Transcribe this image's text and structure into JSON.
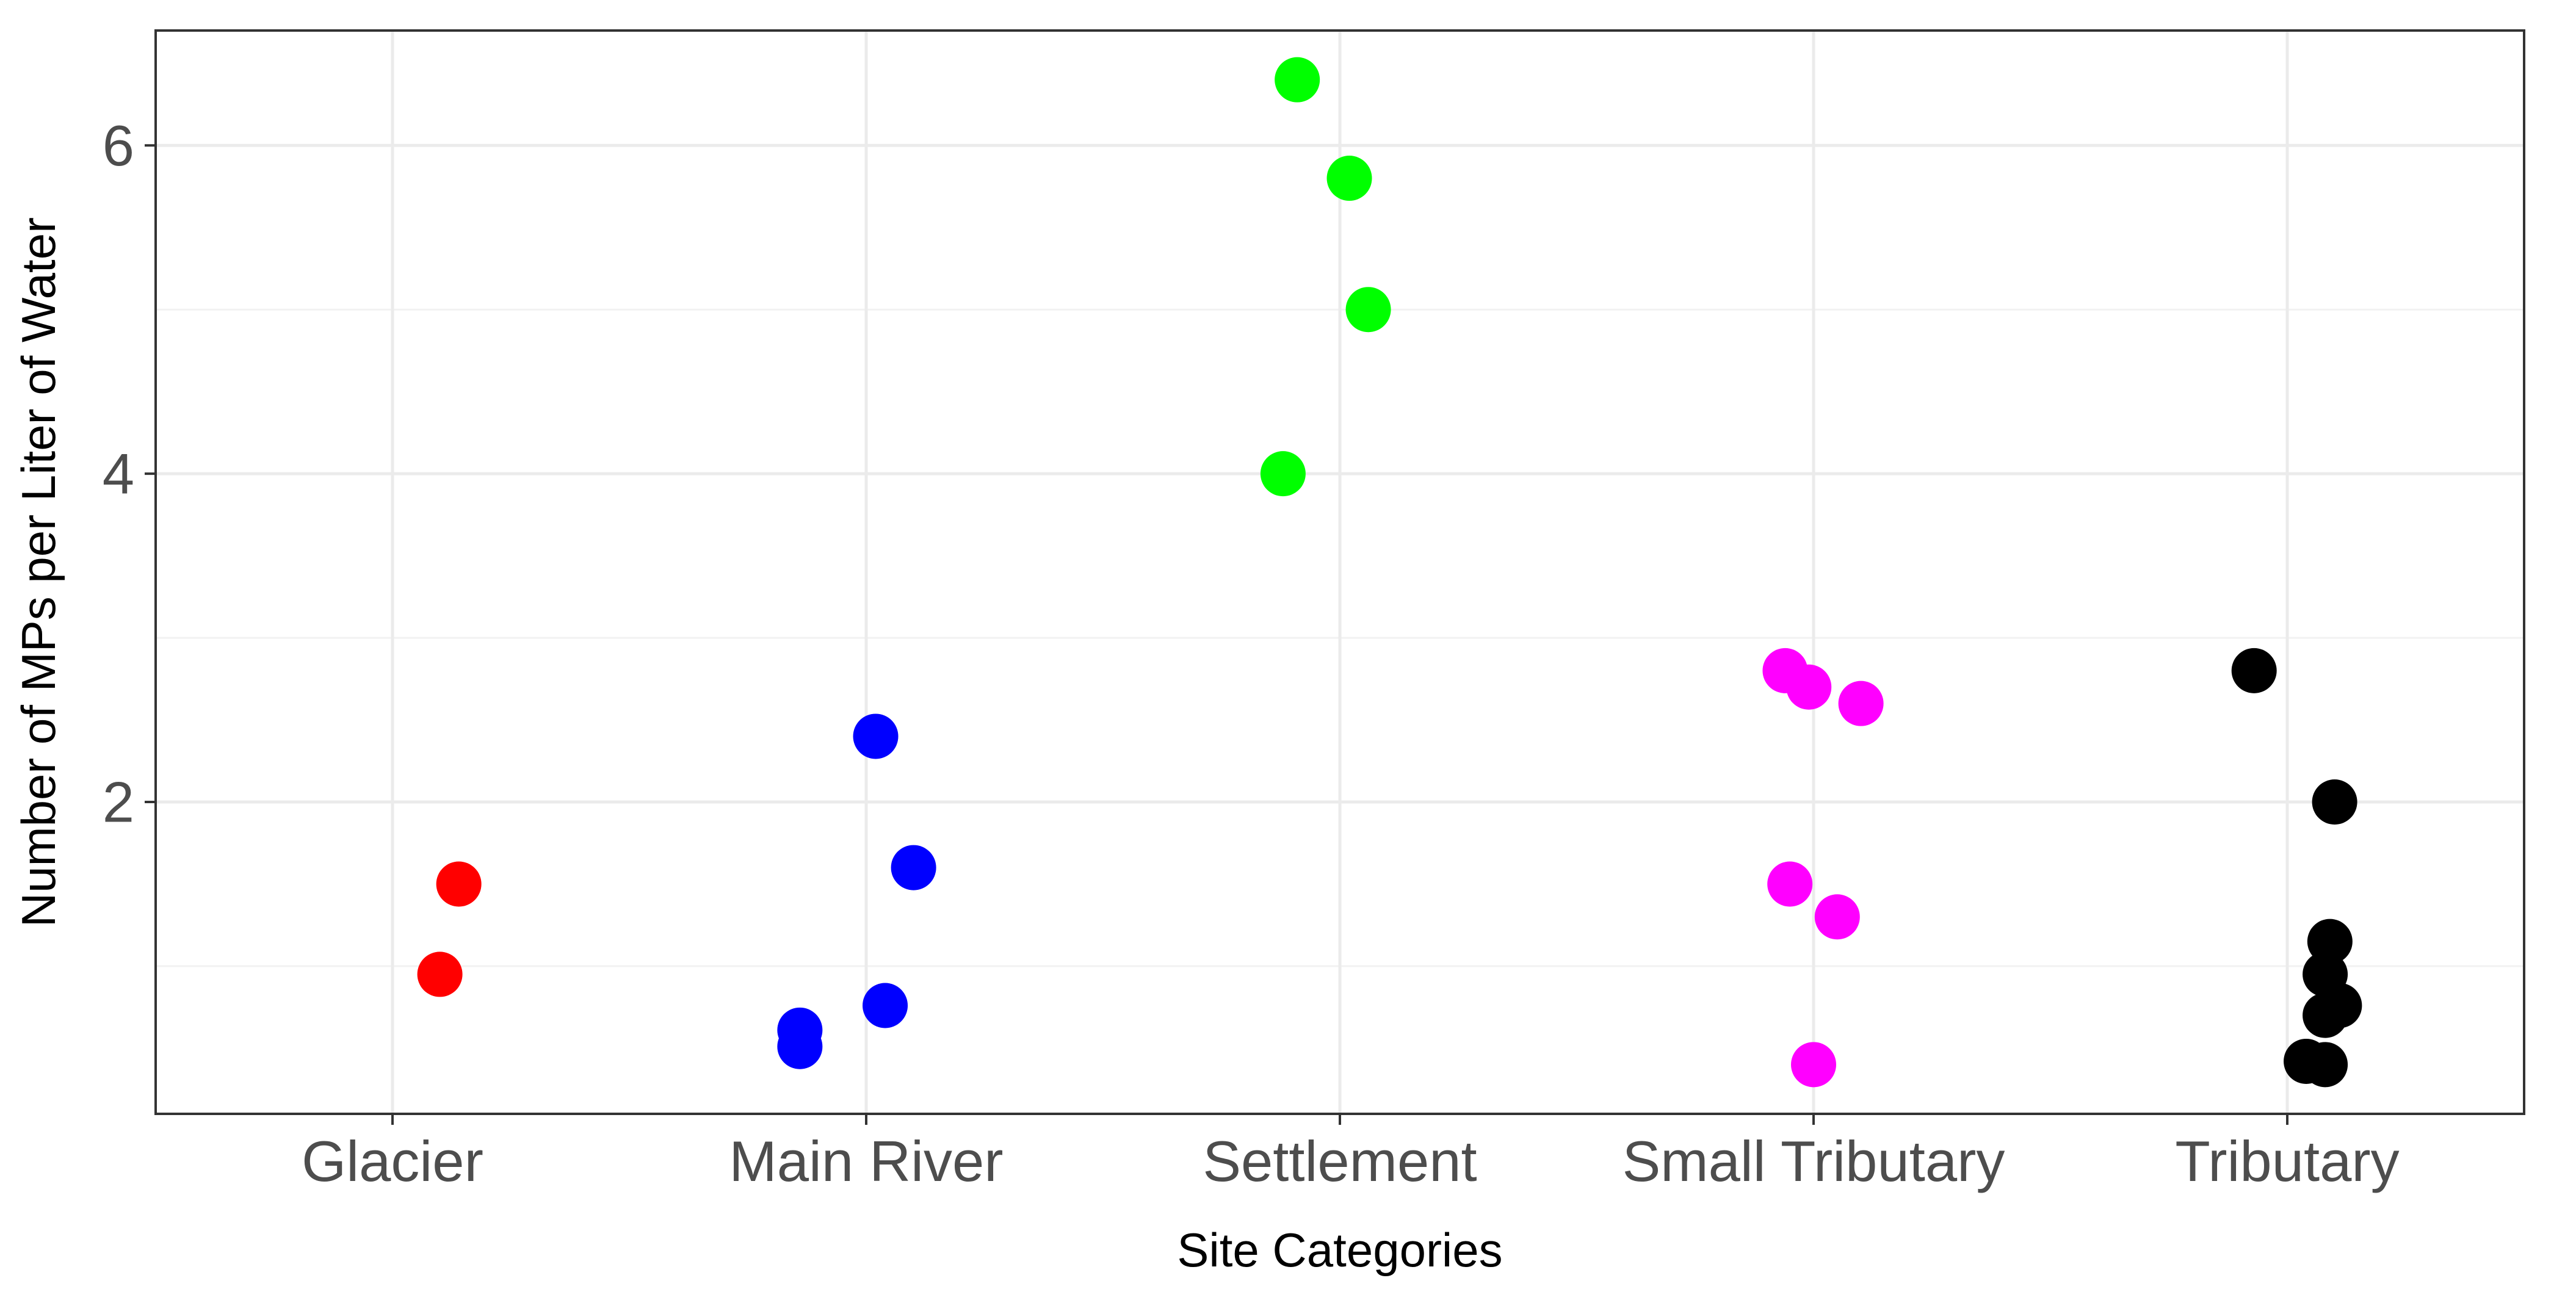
{
  "chart_data": {
    "type": "scatter",
    "title": "",
    "xlabel": "Site Categories",
    "ylabel": "Number of MPs per Liter of Water",
    "categories": [
      "Glacier",
      "Main River",
      "Settlement",
      "Small Tributary",
      "Tributary"
    ],
    "ylim": [
      0.1,
      6.7
    ],
    "y_ticks": [
      2,
      4,
      6
    ],
    "y_minor_ticks": [
      1,
      3,
      5
    ],
    "grid": true,
    "legend": "none",
    "series": [
      {
        "name": "Glacier",
        "color": "#ff0000",
        "points": [
          {
            "category": "Glacier",
            "jitter": 0.14,
            "y": 1.5
          },
          {
            "category": "Glacier",
            "jitter": 0.1,
            "y": 0.95
          }
        ]
      },
      {
        "name": "Main River",
        "color": "#0000ff",
        "points": [
          {
            "category": "Main River",
            "jitter": 0.02,
            "y": 2.4
          },
          {
            "category": "Main River",
            "jitter": 0.1,
            "y": 1.6
          },
          {
            "category": "Main River",
            "jitter": 0.04,
            "y": 0.76
          },
          {
            "category": "Main River",
            "jitter": -0.14,
            "y": 0.61
          },
          {
            "category": "Main River",
            "jitter": -0.14,
            "y": 0.51
          }
        ]
      },
      {
        "name": "Settlement",
        "color": "#00ff00",
        "points": [
          {
            "category": "Settlement",
            "jitter": -0.09,
            "y": 6.4
          },
          {
            "category": "Settlement",
            "jitter": 0.02,
            "y": 5.8
          },
          {
            "category": "Settlement",
            "jitter": 0.06,
            "y": 5.0
          },
          {
            "category": "Settlement",
            "jitter": -0.12,
            "y": 4.0
          }
        ]
      },
      {
        "name": "Small Tributary",
        "color": "#ff00ff",
        "points": [
          {
            "category": "Small Tributary",
            "jitter": -0.06,
            "y": 2.8
          },
          {
            "category": "Small Tributary",
            "jitter": -0.01,
            "y": 2.7
          },
          {
            "category": "Small Tributary",
            "jitter": 0.1,
            "y": 2.6
          },
          {
            "category": "Small Tributary",
            "jitter": -0.05,
            "y": 1.5
          },
          {
            "category": "Small Tributary",
            "jitter": 0.05,
            "y": 1.3
          },
          {
            "category": "Small Tributary",
            "jitter": 0.0,
            "y": 0.4
          }
        ]
      },
      {
        "name": "Tributary",
        "color": "#000000",
        "points": [
          {
            "category": "Tributary",
            "jitter": -0.07,
            "y": 2.8
          },
          {
            "category": "Tributary",
            "jitter": 0.1,
            "y": 2.0
          },
          {
            "category": "Tributary",
            "jitter": 0.09,
            "y": 1.15
          },
          {
            "category": "Tributary",
            "jitter": 0.08,
            "y": 0.95
          },
          {
            "category": "Tributary",
            "jitter": 0.11,
            "y": 0.76
          },
          {
            "category": "Tributary",
            "jitter": 0.08,
            "y": 0.7
          },
          {
            "category": "Tributary",
            "jitter": 0.04,
            "y": 0.42
          },
          {
            "category": "Tributary",
            "jitter": 0.08,
            "y": 0.4
          }
        ]
      }
    ]
  }
}
